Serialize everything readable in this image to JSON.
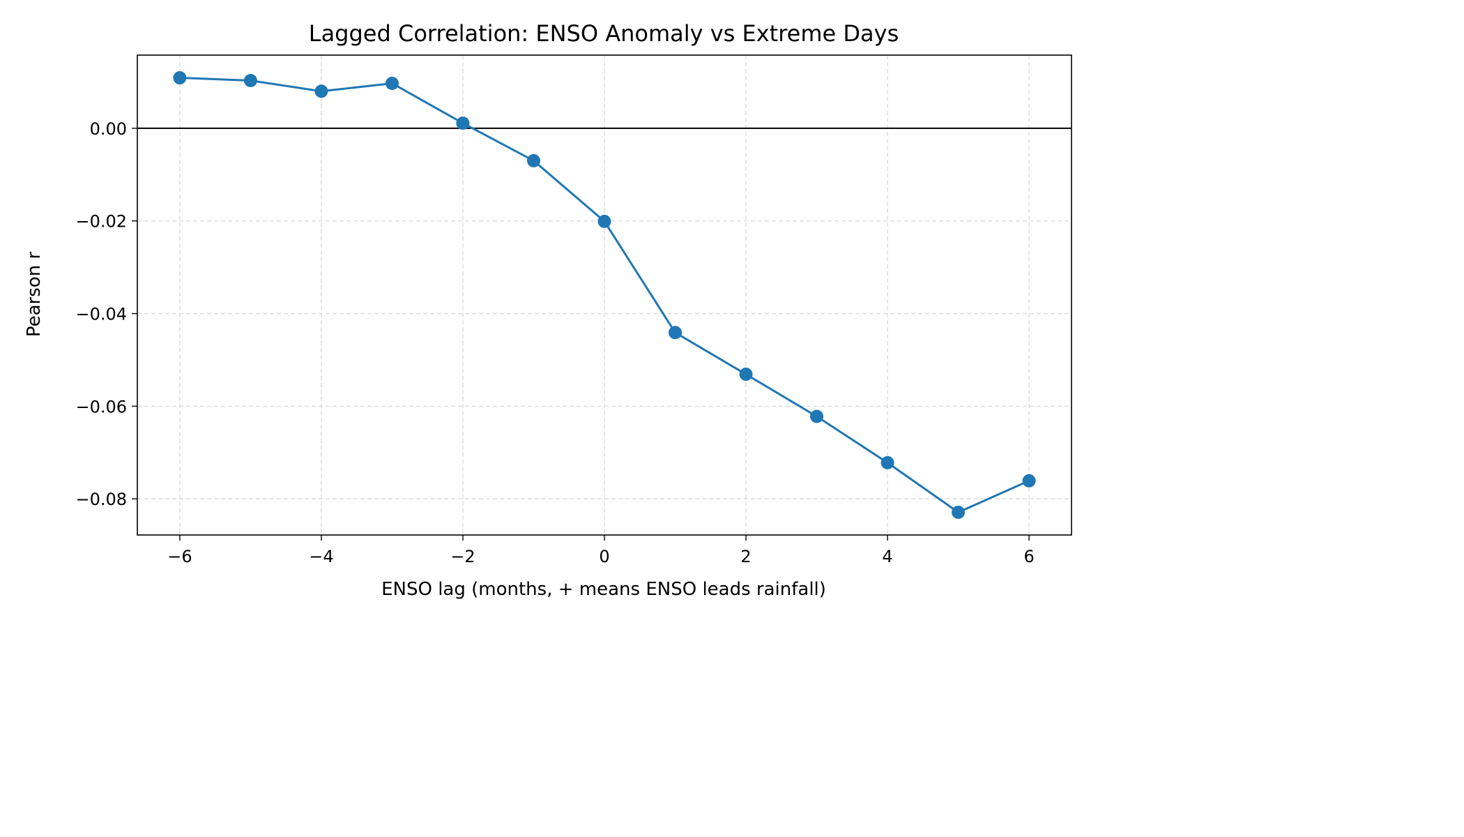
{
  "chart_data": {
    "type": "line",
    "title": "Lagged Correlation: ENSO Anomaly vs Extreme Days",
    "xlabel": "ENSO lag (months, + means ENSO leads rainfall)",
    "ylabel": "Pearson r",
    "xlim": [
      -6.6,
      6.6
    ],
    "ylim": [
      -0.0878,
      0.0158
    ],
    "x_ticks": [
      -6,
      -4,
      -2,
      0,
      2,
      4,
      6
    ],
    "x_tick_labels": [
      "−6",
      "−4",
      "−2",
      "0",
      "2",
      "4",
      "6"
    ],
    "y_ticks": [
      0.0,
      -0.02,
      -0.04,
      -0.06,
      -0.08
    ],
    "y_tick_labels": [
      "0.00",
      "−0.02",
      "−0.04",
      "−0.06",
      "−0.08"
    ],
    "grid": true,
    "reference_line_y": 0,
    "series": [
      {
        "color": "#1f77b4",
        "x": [
          -6,
          -5,
          -4,
          -3,
          -2,
          -1,
          0,
          1,
          2,
          3,
          4,
          5,
          6
        ],
        "y": [
          0.0109,
          0.0103,
          0.008,
          0.0097,
          0.0011,
          -0.007,
          -0.0201,
          -0.0441,
          -0.0531,
          -0.0622,
          -0.0722,
          -0.0829,
          -0.0761
        ]
      }
    ]
  }
}
